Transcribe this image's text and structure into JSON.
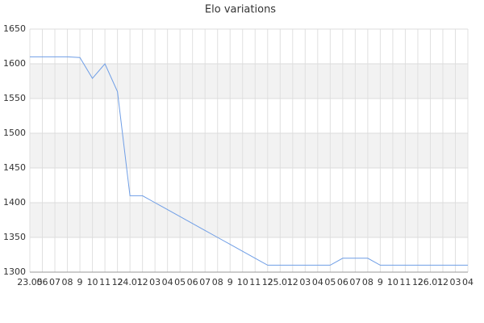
{
  "chart_data": {
    "type": "line",
    "title": "Elo variations",
    "categories": [
      "23.05",
      "06",
      "07",
      "08",
      "9",
      "10",
      "11",
      "12",
      "24.01",
      "12",
      "03",
      "04",
      "05",
      "06",
      "07",
      "08",
      "9",
      "10",
      "11",
      "12",
      "25.01",
      "12",
      "03",
      "04",
      "05",
      "06",
      "07",
      "08",
      "9",
      "10",
      "11",
      "12",
      "26.01",
      "12",
      "03",
      "04"
    ],
    "series": [
      {
        "name": "Elo",
        "color": "#6f9ee6",
        "values": [
          1610,
          1610,
          1610,
          1610,
          1609,
          1579,
          1600,
          1560,
          1410,
          1410,
          1400,
          1390,
          1380,
          1370,
          1360,
          1350,
          1340,
          1330,
          1320,
          1310,
          1310,
          1310,
          1310,
          1310,
          1310,
          1320,
          1320,
          1320,
          1310,
          1310,
          1310,
          1310,
          1310,
          1310,
          1310,
          1310
        ]
      }
    ],
    "ylim": [
      1300,
      1650
    ],
    "yticks": [
      1300,
      1350,
      1400,
      1450,
      1500,
      1550,
      1600,
      1650
    ],
    "grid": true
  }
}
